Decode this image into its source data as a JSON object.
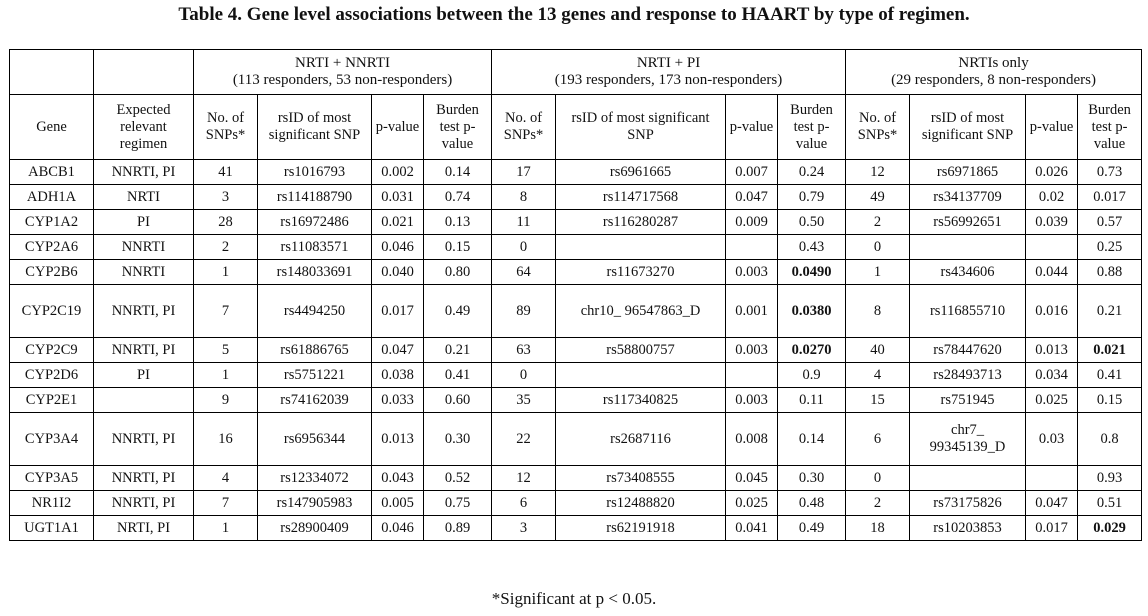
{
  "title": "Table 4. Gene level associations between the 13 genes and response to HAART by type of regimen.",
  "groups": [
    {
      "name": "NRTI + NNRTI",
      "subtitle": "(113 responders, 53 non-responders)"
    },
    {
      "name": "NRTI + PI",
      "subtitle": "(193 responders, 173 non-responders)"
    },
    {
      "name": "NRTIs only",
      "subtitle": "(29 responders, 8 non-responders)"
    }
  ],
  "headers": {
    "gene": "Gene",
    "regimen": "Expected relevant regimen",
    "snps": "No. of SNPs*",
    "rsid": "rsID of most significant SNP",
    "pvalue": "p-value",
    "burden": "Burden test p-value"
  },
  "rows": [
    {
      "gene": "ABCB1",
      "regimen": "NNRTI, PI",
      "g1": [
        "41",
        "rs1016793",
        "0.002",
        "0.14"
      ],
      "g2": [
        "17",
        "rs6961665",
        "0.007",
        "0.24"
      ],
      "g3": [
        "12",
        "rs6971865",
        "0.026",
        "0.73"
      ]
    },
    {
      "gene": "ADH1A",
      "regimen": "NRTI",
      "g1": [
        "3",
        "rs114188790",
        "0.031",
        "0.74"
      ],
      "g2": [
        "8",
        "rs114717568",
        "0.047",
        "0.79"
      ],
      "g3": [
        "49",
        "rs34137709",
        "0.02",
        "0.017"
      ]
    },
    {
      "gene": "CYP1A2",
      "regimen": "PI",
      "g1": [
        "28",
        "rs16972486",
        "0.021",
        "0.13"
      ],
      "g2": [
        "11",
        "rs116280287",
        "0.009",
        "0.50"
      ],
      "g3": [
        "2",
        "rs56992651",
        "0.039",
        "0.57"
      ]
    },
    {
      "gene": "CYP2A6",
      "regimen": "NNRTI",
      "g1": [
        "2",
        "rs11083571",
        "0.046",
        "0.15"
      ],
      "g2": [
        "0",
        "",
        "",
        "0.43"
      ],
      "g3": [
        "0",
        "",
        "",
        "0.25"
      ]
    },
    {
      "gene": "CYP2B6",
      "regimen": "NNRTI",
      "g1": [
        "1",
        "rs148033691",
        "0.040",
        "0.80"
      ],
      "g2": [
        "64",
        "rs11673270",
        "0.003",
        "0.0490"
      ],
      "g3": [
        "1",
        "rs434606",
        "0.044",
        "0.88"
      ]
    },
    {
      "gene": "CYP2C19",
      "regimen": "NNRTI, PI",
      "g1": [
        "7",
        "rs4494250",
        "0.017",
        "0.49"
      ],
      "g2": [
        "89",
        "chr10_ 96547863_D",
        "0.001",
        "0.0380"
      ],
      "g3": [
        "8",
        "rs116855710",
        "0.016",
        "0.21"
      ]
    },
    {
      "gene": "CYP2C9",
      "regimen": "NNRTI, PI",
      "g1": [
        "5",
        "rs61886765",
        "0.047",
        "0.21"
      ],
      "g2": [
        "63",
        "rs58800757",
        "0.003",
        "0.0270"
      ],
      "g3": [
        "40",
        "rs78447620",
        "0.013",
        "0.021"
      ]
    },
    {
      "gene": "CYP2D6",
      "regimen": "PI",
      "g1": [
        "1",
        "rs5751221",
        "0.038",
        "0.41"
      ],
      "g2": [
        "0",
        "",
        "",
        "0.9"
      ],
      "g3": [
        "4",
        "rs28493713",
        "0.034",
        "0.41"
      ]
    },
    {
      "gene": "CYP2E1",
      "regimen": "",
      "g1": [
        "9",
        "rs74162039",
        "0.033",
        "0.60"
      ],
      "g2": [
        "35",
        "rs117340825",
        "0.003",
        "0.11"
      ],
      "g3": [
        "15",
        "rs751945",
        "0.025",
        "0.15"
      ]
    },
    {
      "gene": "CYP3A4",
      "regimen": "NNRTI, PI",
      "g1": [
        "16",
        "rs6956344",
        "0.013",
        "0.30"
      ],
      "g2": [
        "22",
        "rs2687116",
        "0.008",
        "0.14"
      ],
      "g3": [
        "6",
        "chr7_ 99345139_D",
        "0.03",
        "0.8"
      ]
    },
    {
      "gene": "CYP3A5",
      "regimen": "NNRTI, PI",
      "g1": [
        "4",
        "rs12334072",
        "0.043",
        "0.52"
      ],
      "g2": [
        "12",
        "rs73408555",
        "0.045",
        "0.30"
      ],
      "g3": [
        "0",
        "",
        "",
        "0.93"
      ]
    },
    {
      "gene": "NR1I2",
      "regimen": "NNRTI, PI",
      "g1": [
        "7",
        "rs147905983",
        "0.005",
        "0.75"
      ],
      "g2": [
        "6",
        "rs12488820",
        "0.025",
        "0.48"
      ],
      "g3": [
        "2",
        "rs73175826",
        "0.047",
        "0.51"
      ]
    },
    {
      "gene": "UGT1A1",
      "regimen": "NRTI, PI",
      "g1": [
        "1",
        "rs28900409",
        "0.046",
        "0.89"
      ],
      "g2": [
        "3",
        "rs62191918",
        "0.041",
        "0.49"
      ],
      "g3": [
        "18",
        "rs10203853",
        "0.017",
        "0.029"
      ]
    }
  ],
  "bold_cells": [
    {
      "row": 4,
      "group": "g2",
      "col": 3
    },
    {
      "row": 5,
      "group": "g2",
      "col": 3
    },
    {
      "row": 6,
      "group": "g2",
      "col": 3
    },
    {
      "row": 6,
      "group": "g3",
      "col": 3
    },
    {
      "row": 12,
      "group": "g3",
      "col": 3
    }
  ],
  "tall_rows": [
    5,
    9
  ],
  "footnote": "*Significant at p < 0.05."
}
